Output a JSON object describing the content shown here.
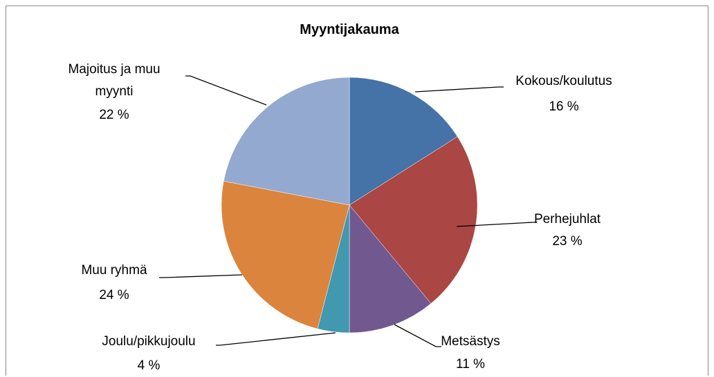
{
  "chart_data": {
    "type": "pie",
    "title": "Myyntijakauma",
    "categories": [
      "Kokous/koulutus",
      "Perhejuhlat",
      "Metsästys",
      "Joulu/pikkujoulu",
      "Muu ryhmä",
      "Majoitus ja muu myynti"
    ],
    "values": [
      16,
      23,
      11,
      4,
      24,
      22
    ],
    "value_labels": [
      "16 %",
      "23 %",
      "11 %",
      "4 %",
      "24 %",
      "22 %"
    ],
    "colors": [
      "#4572a7",
      "#aa4643",
      "#71588f",
      "#4198af",
      "#db843d",
      "#93a9cf"
    ]
  }
}
